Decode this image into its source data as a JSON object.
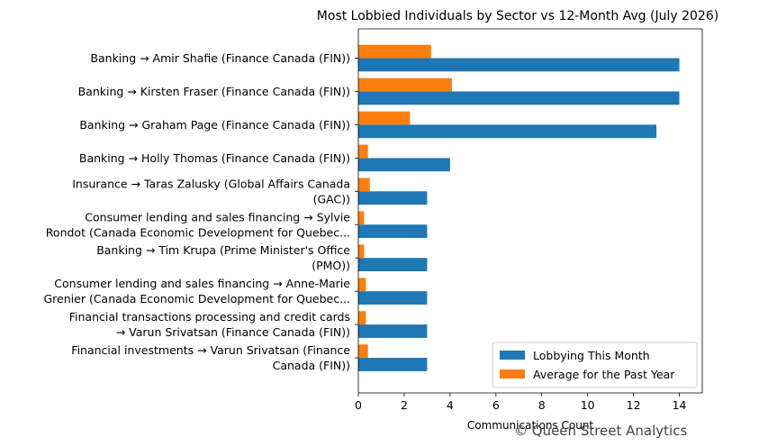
{
  "chart_data": {
    "type": "bar",
    "orientation": "horizontal",
    "title": "Most Lobbied Individuals by Sector vs 12-Month Avg (July 2026)",
    "xlabel": "Communications Count",
    "ylabel": "",
    "xlim": [
      0,
      15
    ],
    "xticks": [
      "0",
      "2",
      "4",
      "6",
      "8",
      "10",
      "12",
      "14"
    ],
    "categories": [
      [
        "Banking → Amir Shafie (Finance Canada (FIN))"
      ],
      [
        "Banking → Kirsten Fraser (Finance Canada (FIN))"
      ],
      [
        "Banking → Graham Page (Finance Canada (FIN))"
      ],
      [
        "Banking → Holly Thomas (Finance Canada (FIN))"
      ],
      [
        "Insurance → Taras Zalusky (Global Affairs Canada",
        "(GAC))"
      ],
      [
        "Consumer lending and sales financing → Sylvie",
        "Rondot (Canada Economic Development for Quebec..."
      ],
      [
        "Banking → Tim Krupa (Prime Minister's Office",
        "(PMO))"
      ],
      [
        "Consumer lending and sales financing → Anne-Marie",
        "Grenier (Canada Economic Development for Quebec..."
      ],
      [
        "Financial transactions processing and credit cards",
        "→ Varun  Srivatsan (Finance Canada (FIN))"
      ],
      [
        "Financial investments → Varun  Srivatsan (Finance",
        "Canada (FIN))"
      ]
    ],
    "series": [
      {
        "name": "Lobbying This Month",
        "color": "#1f77b4",
        "values": [
          14,
          14,
          13,
          4,
          3,
          3,
          3,
          3,
          3,
          3
        ]
      },
      {
        "name": "Average for the Past Year",
        "color": "#ff7f0e",
        "values": [
          3.17,
          4.08,
          2.25,
          0.42,
          0.5,
          0.25,
          0.25,
          0.33,
          0.33,
          0.42
        ]
      }
    ],
    "legend_position": "lower-right",
    "grid": false
  },
  "watermark": "© Queen Street Analytics"
}
